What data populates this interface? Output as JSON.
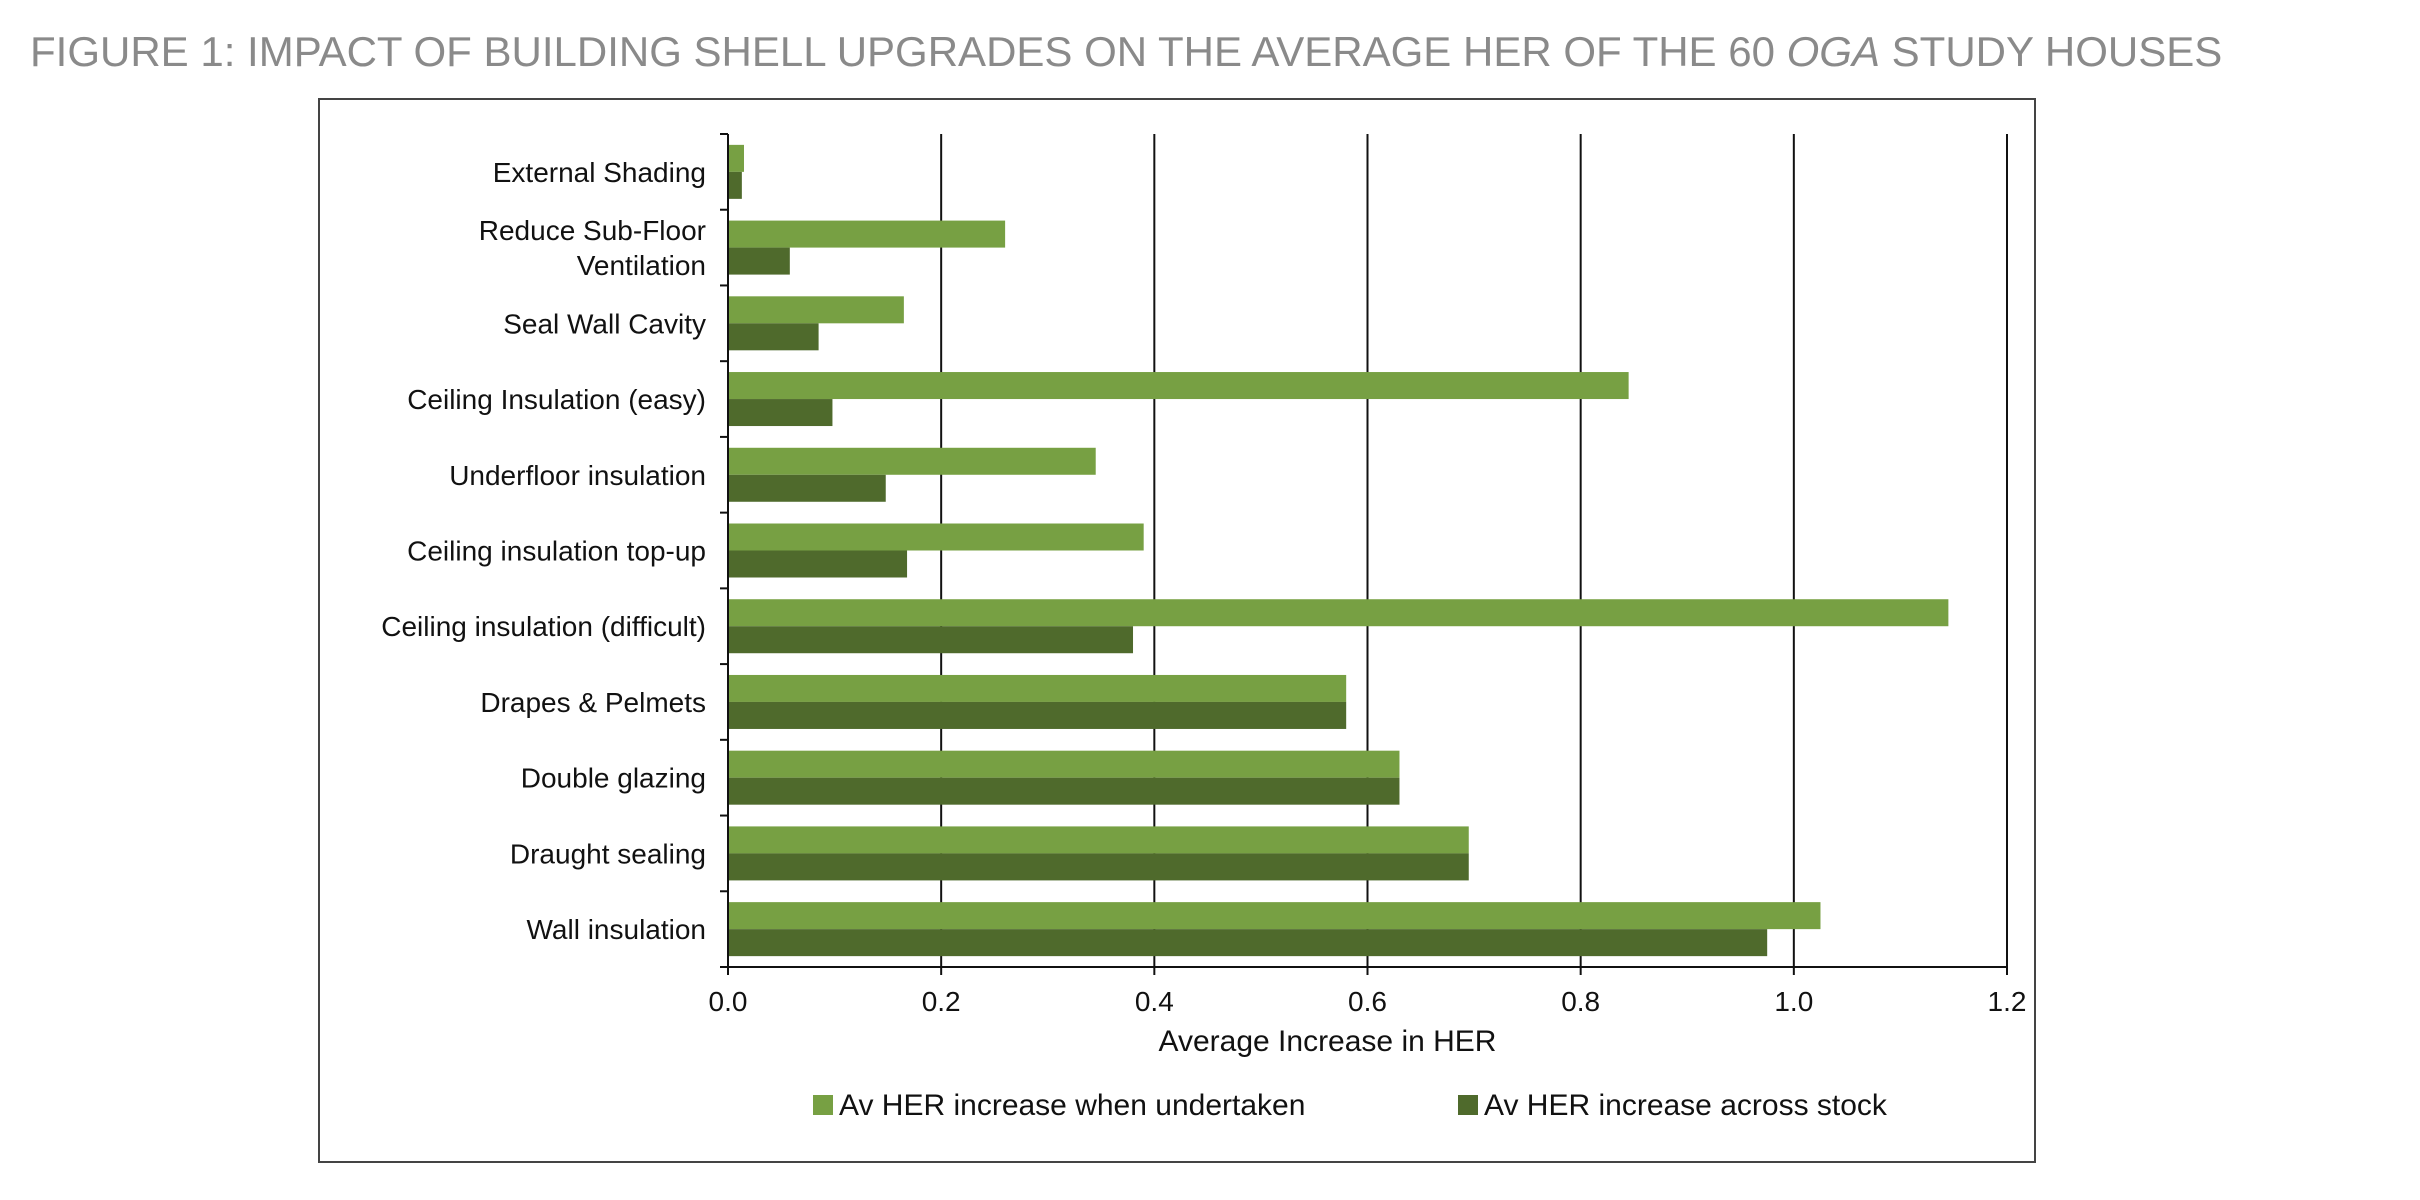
{
  "figure": {
    "title_prefix": "FIGURE 1: IMPACT OF BUILDING SHELL UPGRADES ON THE AVERAGE HER OF THE 60 ",
    "title_italic": "OGA",
    "title_suffix": " STUDY HOUSES"
  },
  "chart_data": {
    "type": "bar",
    "orientation": "horizontal",
    "categories": [
      "External Shading",
      [
        "Reduce Sub-Floor",
        "Ventilation"
      ],
      "Seal Wall Cavity",
      "Ceiling Insulation (easy)",
      "Underfloor insulation",
      "Ceiling insulation top-up",
      "Ceiling insulation (difficult)",
      "Drapes & Pelmets",
      "Double glazing",
      "Draught sealing",
      "Wall insulation"
    ],
    "series": [
      {
        "name": "Av HER increase when undertaken",
        "color": "#77a043",
        "values": [
          0.015,
          0.26,
          0.165,
          0.845,
          0.345,
          0.39,
          1.145,
          0.58,
          0.63,
          0.695,
          1.025
        ]
      },
      {
        "name": "Av HER increase across stock",
        "color": "#4f6a2c",
        "values": [
          0.013,
          0.058,
          0.085,
          0.098,
          0.148,
          0.168,
          0.38,
          0.58,
          0.63,
          0.695,
          0.975
        ]
      }
    ],
    "xlabel": "Average Increase in HER",
    "xlim": [
      0,
      1.2
    ],
    "xticks": [
      "0.0",
      "0.2",
      "0.4",
      "0.6",
      "0.8",
      "1.0",
      "1.2"
    ],
    "grid": "vertical",
    "legend_position": "bottom"
  }
}
